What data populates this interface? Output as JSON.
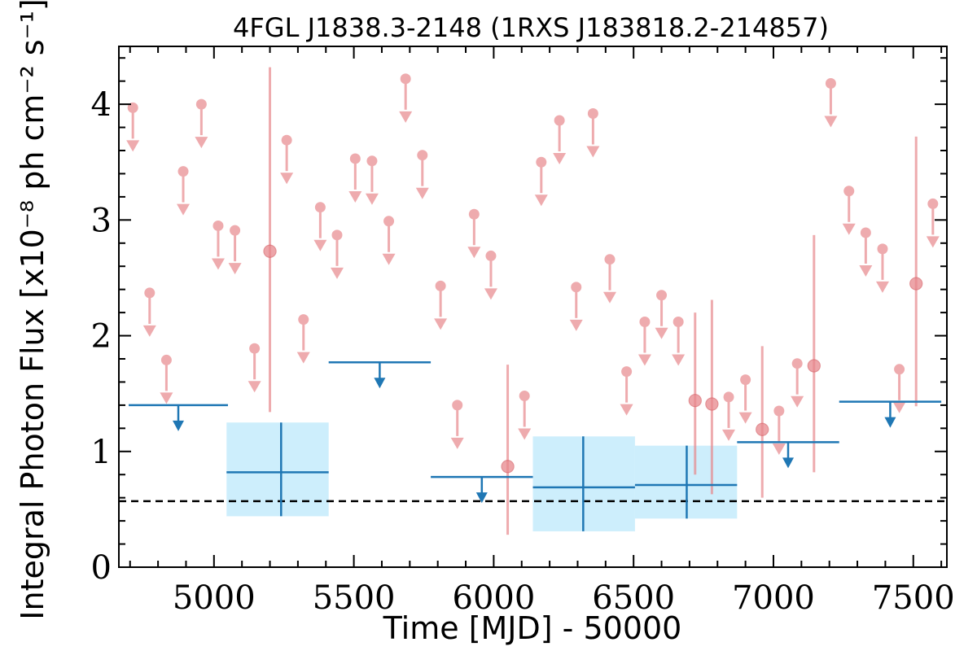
{
  "chart_data": {
    "type": "scatter",
    "title": "4FGL J1838.3-2148 (1RXS J183818.2-214857)",
    "xlabel": "Time [MJD] - 50000",
    "ylabel": "Integral Photon Flux [x10⁻⁸ ph cm⁻² s⁻¹]",
    "xlim": [
      4660,
      7620
    ],
    "ylim": [
      0,
      4.5
    ],
    "x_ticks": [
      5000,
      5500,
      6000,
      6500,
      7000,
      7500
    ],
    "y_ticks": [
      0,
      1,
      2,
      3,
      4
    ],
    "grid": false,
    "colors": {
      "short_bins": "#e8888d",
      "long_bins": "#1f77b4",
      "error_box": "#cdeefc",
      "reference": "#000000"
    },
    "reference_level": 0.57,
    "short_bin_upper_limits": [
      {
        "x": 4710,
        "y": 3.97
      },
      {
        "x": 4770,
        "y": 2.37
      },
      {
        "x": 4830,
        "y": 1.79
      },
      {
        "x": 4890,
        "y": 3.42
      },
      {
        "x": 4955,
        "y": 4.0
      },
      {
        "x": 5015,
        "y": 2.95
      },
      {
        "x": 5075,
        "y": 2.91
      },
      {
        "x": 5145,
        "y": 1.89
      },
      {
        "x": 5260,
        "y": 3.69
      },
      {
        "x": 5320,
        "y": 2.14
      },
      {
        "x": 5380,
        "y": 3.11
      },
      {
        "x": 5440,
        "y": 2.87
      },
      {
        "x": 5505,
        "y": 3.53
      },
      {
        "x": 5565,
        "y": 3.51
      },
      {
        "x": 5625,
        "y": 2.99
      },
      {
        "x": 5685,
        "y": 4.22
      },
      {
        "x": 5745,
        "y": 3.56
      },
      {
        "x": 5810,
        "y": 2.43
      },
      {
        "x": 5870,
        "y": 1.4
      },
      {
        "x": 5930,
        "y": 3.05
      },
      {
        "x": 5990,
        "y": 2.69
      },
      {
        "x": 6110,
        "y": 1.48
      },
      {
        "x": 6170,
        "y": 3.5
      },
      {
        "x": 6235,
        "y": 3.86
      },
      {
        "x": 6295,
        "y": 2.42
      },
      {
        "x": 6355,
        "y": 3.92
      },
      {
        "x": 6415,
        "y": 2.66
      },
      {
        "x": 6475,
        "y": 1.69
      },
      {
        "x": 6540,
        "y": 2.12
      },
      {
        "x": 6600,
        "y": 2.35
      },
      {
        "x": 6660,
        "y": 2.12
      },
      {
        "x": 6840,
        "y": 1.47
      },
      {
        "x": 6900,
        "y": 1.62
      },
      {
        "x": 7020,
        "y": 1.35
      },
      {
        "x": 7085,
        "y": 1.76
      },
      {
        "x": 7205,
        "y": 4.18
      },
      {
        "x": 7270,
        "y": 3.25
      },
      {
        "x": 7330,
        "y": 2.89
      },
      {
        "x": 7390,
        "y": 2.75
      },
      {
        "x": 7450,
        "y": 1.71
      },
      {
        "x": 7570,
        "y": 3.14
      }
    ],
    "short_bin_detections": [
      {
        "x": 5200,
        "y": 2.73,
        "y_low": 1.34,
        "y_high": 4.32
      },
      {
        "x": 6050,
        "y": 0.87,
        "y_low": 0.28,
        "y_high": 1.75
      },
      {
        "x": 6720,
        "y": 1.44,
        "y_low": 0.8,
        "y_high": 2.2
      },
      {
        "x": 6780,
        "y": 1.41,
        "y_low": 0.63,
        "y_high": 2.31
      },
      {
        "x": 6960,
        "y": 1.19,
        "y_low": 0.6,
        "y_high": 1.91
      },
      {
        "x": 7145,
        "y": 1.74,
        "y_low": 0.82,
        "y_high": 2.87
      },
      {
        "x": 7510,
        "y": 2.45,
        "y_low": 1.39,
        "y_high": 3.72
      }
    ],
    "long_bin_upper_limits": [
      {
        "x0": 4695,
        "x1": 5050,
        "y": 1.4
      },
      {
        "x0": 5410,
        "x1": 5775,
        "y": 1.77
      },
      {
        "x0": 5775,
        "x1": 6140,
        "y": 0.78
      },
      {
        "x0": 6870,
        "x1": 7235,
        "y": 1.08
      },
      {
        "x0": 7235,
        "x1": 7600,
        "y": 1.43
      }
    ],
    "long_bin_detections": [
      {
        "x0": 5045,
        "x1": 5410,
        "xc": 5240,
        "y": 0.82,
        "y_low": 0.44,
        "y_high": 1.25
      },
      {
        "x0": 6140,
        "x1": 6505,
        "xc": 6320,
        "y": 0.69,
        "y_low": 0.31,
        "y_high": 1.13
      },
      {
        "x0": 6505,
        "x1": 6870,
        "xc": 6690,
        "y": 0.71,
        "y_low": 0.42,
        "y_high": 1.05
      }
    ]
  }
}
